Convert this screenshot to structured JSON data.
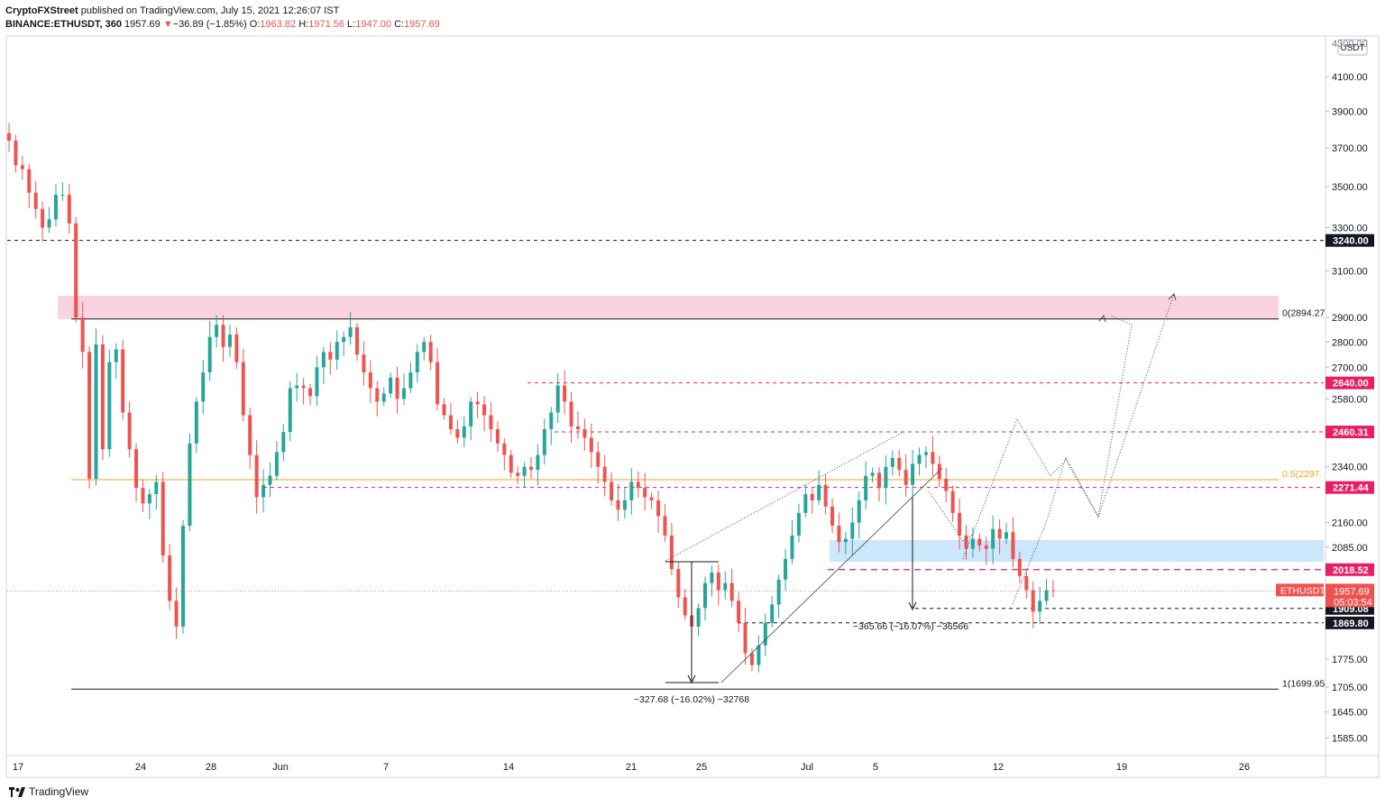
{
  "header": {
    "publisher": "CryptoFXStreet",
    "published_text": "published on TradingView.com, July 15, 2021 12:26:07 IST",
    "symbol": "BINANCE:ETHUSDT, 360",
    "last": "1957.69",
    "change": "−36.89 (−1.85%)",
    "o_label": "O:",
    "o_value": "1963.82",
    "h_label": "H:",
    "h_value": "1971.56",
    "l_label": "L:",
    "l_value": "1947.00",
    "c_label": "C:",
    "c_value": "1957.69"
  },
  "footer": {
    "brand": "TradingView"
  },
  "colors": {
    "up": "#26a69a",
    "down": "#ef5350",
    "level": "#e91e63",
    "fib": "#f7a21b",
    "zone_pink": "#f8c8d8",
    "zone_blue": "#bbdefb"
  },
  "chart_data": {
    "type": "candlestick",
    "y_axis": {
      "unit": "USDT",
      "scale": "log",
      "ticks": [
        "4100.00",
        "3900.00",
        "3700.00",
        "3500.00",
        "3300.00",
        "3100.00",
        "2900.00",
        "2800.00",
        "2700.00",
        "2580.00",
        "2340.00",
        "2160.00",
        "2085.00",
        "1775.00",
        "1705.00",
        "1645.00",
        "1585.00"
      ],
      "top_partial_tick": "4300.00"
    },
    "x_axis": {
      "ticks": [
        "17",
        "24",
        "28",
        "Jun",
        "7",
        "14",
        "21",
        "25",
        "Jul",
        "5",
        "12",
        "19",
        "26"
      ]
    },
    "price_labels": [
      {
        "text": "3240.00",
        "value": 3240,
        "color": "#131722"
      },
      {
        "text": "2640.00",
        "value": 2640,
        "color": "#e91e63"
      },
      {
        "text": "2460.31",
        "value": 2460.31,
        "color": "#e91e63"
      },
      {
        "text": "2271.44",
        "value": 2271.44,
        "color": "#e91e63"
      },
      {
        "text": "2018.52",
        "value": 2018.52,
        "color": "#e91e63"
      },
      {
        "text": "1909.08",
        "value": 1909.08,
        "color": "#131722"
      },
      {
        "text": "1869.80",
        "value": 1869.8,
        "color": "#131722"
      }
    ],
    "current_price": {
      "symbol": "ETHUSDT",
      "price": "1957.69",
      "countdown": "05:03:54",
      "value": 1957.69
    },
    "fib_labels": {
      "level_0": "0(2894.27",
      "level_05": "0.5(2297.",
      "level_1": "1(1699.95"
    },
    "measurements": [
      {
        "text": "−327.68 (−16.02%) −32768"
      },
      {
        "text": "−365.66 (−16.07%) −36566"
      }
    ],
    "close_path": [
      3740,
      3610,
      3590,
      3470,
      3390,
      3300,
      3340,
      3460,
      3460,
      3320,
      2900,
      2760,
      2300,
      2790,
      2400,
      2720,
      2770,
      2530,
      2400,
      2270,
      2220,
      2250,
      2290,
      2060,
      1930,
      1860,
      2150,
      2420,
      2570,
      2680,
      2820,
      2870,
      2780,
      2830,
      2720,
      2520,
      2380,
      2240,
      2280,
      2310,
      2390,
      2460,
      2620,
      2630,
      2620,
      2590,
      2700,
      2760,
      2730,
      2800,
      2820,
      2860,
      2750,
      2680,
      2620,
      2570,
      2600,
      2660,
      2580,
      2620,
      2680,
      2760,
      2800,
      2720,
      2560,
      2520,
      2470,
      2440,
      2480,
      2570,
      2560,
      2520,
      2470,
      2420,
      2380,
      2320,
      2310,
      2340,
      2330,
      2380,
      2470,
      2530,
      2630,
      2570,
      2480,
      2470,
      2440,
      2390,
      2340,
      2290,
      2230,
      2200,
      2230,
      2290,
      2270,
      2240,
      2230,
      2180,
      2120,
      2020,
      1940,
      1890,
      1860,
      1910,
      1980,
      2010,
      1960,
      1980,
      1930,
      1870,
      1790,
      1760,
      1810,
      1870,
      1920,
      1990,
      2050,
      2120,
      2190,
      2250,
      2230,
      2280,
      2210,
      2150,
      2100,
      2110,
      2160,
      2230,
      2310,
      2320,
      2270,
      2340,
      2370,
      2330,
      2280,
      2350,
      2380,
      2390,
      2350,
      2300,
      2260,
      2190,
      2120,
      2080,
      2110,
      2090,
      2080,
      2140,
      2110,
      2130,
      2050,
      2000,
      1960,
      1900,
      1930,
      1960,
      1957.69
    ]
  }
}
